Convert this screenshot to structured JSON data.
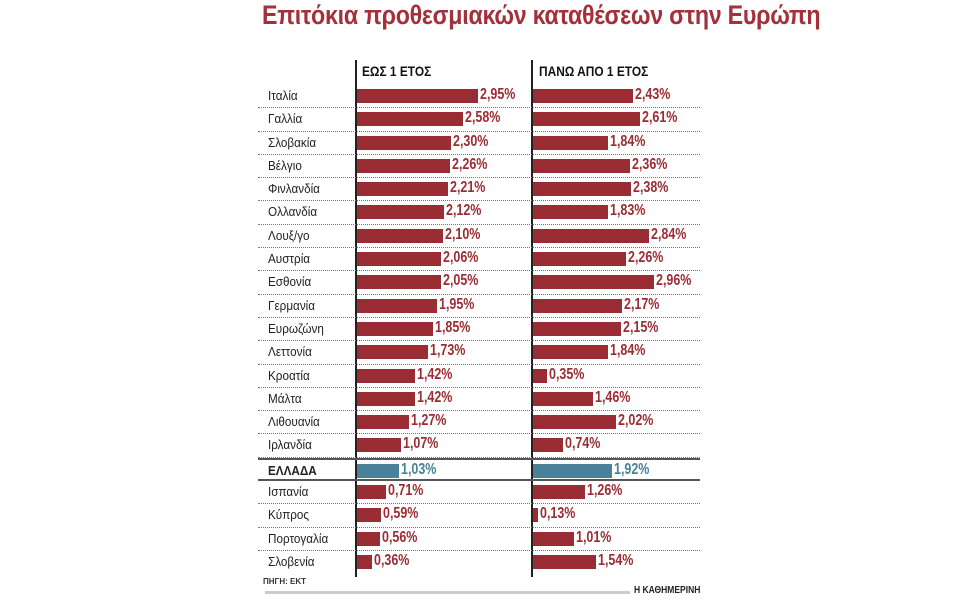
{
  "chart_data": {
    "type": "bar",
    "orientation": "horizontal",
    "title": "Επιτόκια προθεσμιακών καταθέσεων στην Ευρώπη",
    "categories": [
      "Ιταλία",
      "Γαλλία",
      "Σλοβακία",
      "Βέλγιο",
      "Φινλανδία",
      "Ολλανδία",
      "Λουξ/γο",
      "Αυστρία",
      "Εσθονία",
      "Γερμανία",
      "Ευρωζώνη",
      "Λεττονία",
      "Κροατία",
      "Μάλτα",
      "Λιθουανία",
      "Ιρλανδία",
      "ΕΛΛΑΔΑ",
      "Ισπανία",
      "Κύπρος",
      "Πορτογαλία",
      "Σλοβενία"
    ],
    "highlight": "ΕΛΛΑΔΑ",
    "series": [
      {
        "name": "ΕΩΣ 1 ΕΤΟΣ",
        "values": [
          2.95,
          2.58,
          2.3,
          2.26,
          2.21,
          2.12,
          2.1,
          2.06,
          2.05,
          1.95,
          1.85,
          1.73,
          1.42,
          1.42,
          1.27,
          1.07,
          1.03,
          0.71,
          0.59,
          0.56,
          0.36
        ]
      },
      {
        "name": "ΠΑΝΩ ΑΠΟ 1 ΕΤΟΣ",
        "values": [
          2.43,
          2.61,
          1.84,
          2.36,
          2.38,
          1.83,
          2.84,
          2.26,
          2.96,
          2.17,
          2.15,
          1.84,
          0.35,
          1.46,
          2.02,
          0.74,
          1.92,
          1.26,
          0.13,
          1.01,
          1.54
        ]
      }
    ],
    "unit": "%",
    "colors": {
      "bar": "#9a2d33",
      "highlight": "#4a8198"
    },
    "grid": false
  },
  "source": "ΠΗΓΗ: ΕΚΤ",
  "brand": "Η ΚΑΘΗΜΕΡΙΝΗ"
}
